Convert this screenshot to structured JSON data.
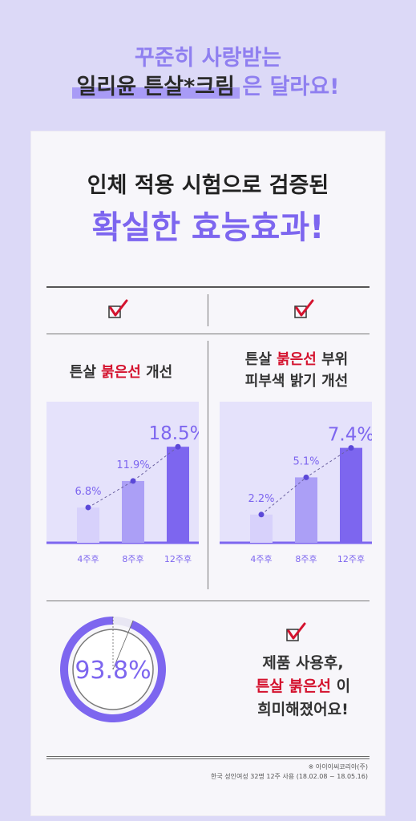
{
  "header": {
    "line1": "꾸준히 사랑받는",
    "line2_highlight": "일리윤 튼살*크림",
    "line2_rest": " 은 달라요!"
  },
  "card": {
    "title1": "인체 적용 시험으로 검증된",
    "title2": "확실한 효능효과!"
  },
  "left_col": {
    "title_a": "튼살 ",
    "title_red": "붉은선",
    "title_b": " 개선"
  },
  "right_col": {
    "line1_a": "튼살 ",
    "line1_red": "붉은선",
    "line1_b": " 부위",
    "line2": "피부색 밝기 개선"
  },
  "bottom": {
    "line1": "제품 사용후,",
    "line2_red": "튼살 붉은선",
    "line2_b": " 이",
    "line3": "희미해졌어요!"
  },
  "footnote": {
    "line1": "※ 아이이씨코리아(주)",
    "line2": "한국 성인여성 32명 12주 사용 (18.02.08 ~ 18.05.16)"
  },
  "colors": {
    "accent": "#7d66ef",
    "red": "#d4122e",
    "bar1": "#d7d1fb",
    "bar2": "#ab9ff6",
    "bar3": "#7d66ef",
    "panel": "#e5e2fb"
  },
  "chart_data": [
    {
      "type": "bar",
      "categories": [
        "4주후",
        "8주후",
        "12주후"
      ],
      "values": [
        6.8,
        11.9,
        18.5
      ],
      "data_labels": [
        "6.8%",
        "11.9%",
        "18.5%"
      ],
      "ylim": [
        0,
        21
      ]
    },
    {
      "type": "bar",
      "categories": [
        "4주후",
        "8주후",
        "12주후"
      ],
      "values": [
        2.2,
        5.1,
        7.4
      ],
      "data_labels": [
        "2.2%",
        "5.1%",
        "7.4%"
      ],
      "ylim": [
        0,
        8.5
      ]
    },
    {
      "type": "pie",
      "values": [
        93.8,
        6.2
      ],
      "data_label": "93.8%"
    }
  ]
}
